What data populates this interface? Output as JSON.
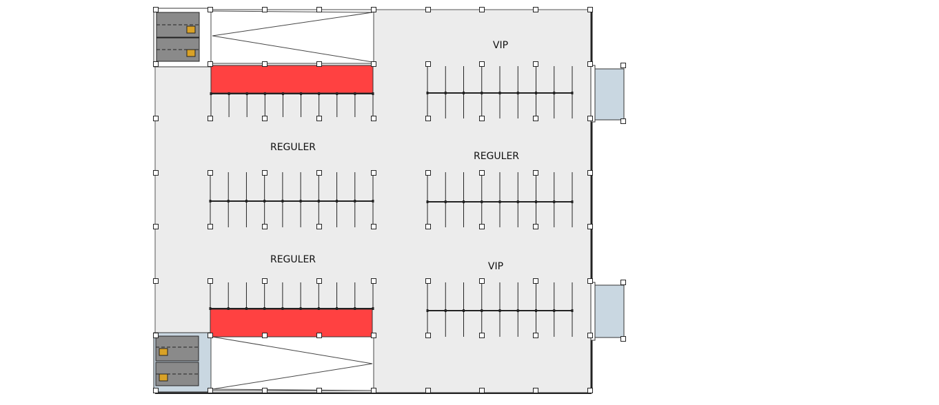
{
  "plan": {
    "zones": [
      {
        "id": "vip-top",
        "label": "VIP"
      },
      {
        "id": "reguler-left",
        "label": "REGULER"
      },
      {
        "id": "reguler-right",
        "label": "REGULER"
      },
      {
        "id": "reguler-left-bottom",
        "label": "REGULER"
      },
      {
        "id": "vip-bottom",
        "label": "VIP"
      }
    ],
    "colors": {
      "floor": "#ececec",
      "restricted_bay": "#ff4141",
      "entrance_pad": "#c9d7e1",
      "vehicle_body": "#8a8a8a",
      "vehicle_cab": "#d9a227"
    },
    "icons": [
      "parked-truck-icon",
      "column-marker-icon"
    ]
  }
}
